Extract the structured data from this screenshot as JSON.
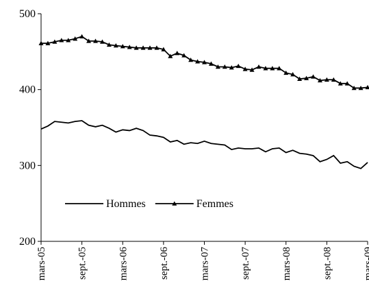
{
  "chart_data": {
    "type": "line",
    "categories": [
      "mars-05",
      null,
      null,
      null,
      null,
      null,
      "sept.-05",
      null,
      null,
      null,
      null,
      null,
      "mars-06",
      null,
      null,
      null,
      null,
      null,
      "sept.-06",
      null,
      null,
      null,
      null,
      null,
      "mars-07",
      null,
      null,
      null,
      null,
      null,
      "sept.-07",
      null,
      null,
      null,
      null,
      null,
      "mars-08",
      null,
      null,
      null,
      null,
      null,
      "sept.-08",
      null,
      null,
      null,
      null,
      null,
      "mars-09"
    ],
    "series": [
      {
        "name": "Hommes",
        "color": "#000000",
        "marker": "none",
        "values": [
          348,
          352,
          358,
          357,
          356,
          358,
          359,
          353,
          351,
          353,
          349,
          344,
          347,
          346,
          349,
          346,
          340,
          339,
          337,
          331,
          333,
          328,
          330,
          329,
          332,
          329,
          328,
          327,
          321,
          323,
          322,
          322,
          323,
          318,
          322,
          323,
          317,
          320,
          316,
          315,
          313,
          305,
          308,
          313,
          303,
          305,
          299,
          296,
          304
        ]
      },
      {
        "name": "Femmes",
        "color": "#000000",
        "marker": "triangle",
        "values": [
          461,
          461,
          463,
          465,
          465,
          467,
          470,
          464,
          464,
          463,
          459,
          458,
          457,
          456,
          455,
          455,
          455,
          455,
          453,
          444,
          448,
          445,
          439,
          437,
          436,
          434,
          430,
          430,
          429,
          431,
          427,
          426,
          430,
          428,
          428,
          428,
          422,
          420,
          414,
          415,
          417,
          412,
          413,
          413,
          408,
          408,
          402,
          402,
          403
        ]
      }
    ],
    "ylim": [
      200,
      500
    ],
    "yticks": [
      200,
      300,
      400,
      500
    ],
    "grid": false,
    "legend": "lower left"
  }
}
